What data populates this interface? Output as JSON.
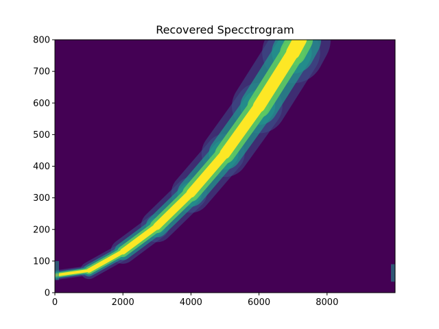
{
  "chart_data": {
    "type": "heatmap",
    "title": "Recovered Specctrogram",
    "xlabel": "",
    "ylabel": "",
    "xlim": [
      0,
      10000
    ],
    "ylim": [
      0,
      800
    ],
    "x_ticks": [
      0,
      2000,
      4000,
      6000,
      8000
    ],
    "x_tick_labels": [
      "0",
      "2000",
      "4000",
      "6000",
      "8000"
    ],
    "y_ticks": [
      0,
      100,
      200,
      300,
      400,
      500,
      600,
      700,
      800
    ],
    "y_tick_labels": [
      "0",
      "100",
      "200",
      "300",
      "400",
      "500",
      "600",
      "700",
      "800"
    ],
    "grid": false,
    "colormap": "viridis",
    "colors": {
      "low": "#440154",
      "mid_low": "#3b528b",
      "mid": "#21918c",
      "mid_high": "#5ec962",
      "high": "#fde725"
    },
    "ridge": {
      "points": [
        {
          "x": 0,
          "y": 55
        },
        {
          "x": 1000,
          "y": 70
        },
        {
          "x": 2000,
          "y": 130
        },
        {
          "x": 3000,
          "y": 210
        },
        {
          "x": 4000,
          "y": 315
        },
        {
          "x": 5000,
          "y": 440
        },
        {
          "x": 6000,
          "y": 590
        },
        {
          "x": 7000,
          "y": 760
        },
        {
          "x": 7200,
          "y": 800
        }
      ]
    },
    "edge_artifacts": [
      {
        "x": 0,
        "y_range": [
          40,
          100
        ]
      },
      {
        "x": 10000,
        "y_range": [
          35,
          90
        ]
      }
    ]
  }
}
